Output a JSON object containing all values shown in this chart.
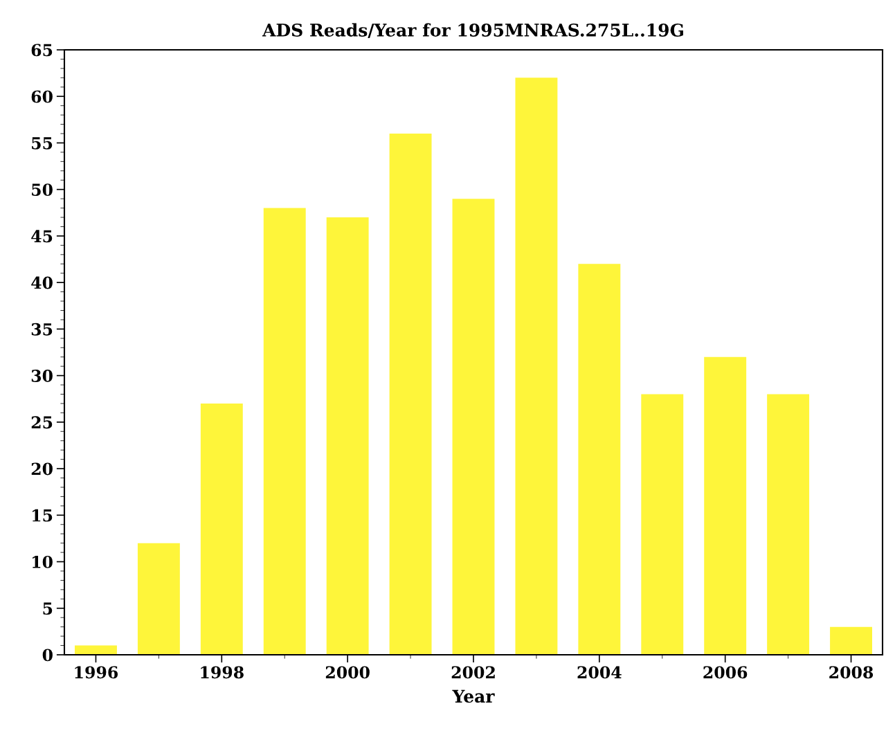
{
  "chart_data": {
    "type": "bar",
    "title": "ADS Reads/Year for 1995MNRAS.275L..19G",
    "xlabel": "Year",
    "x": [
      1996,
      1997,
      1998,
      1999,
      2000,
      2001,
      2002,
      2003,
      2004,
      2005,
      2006,
      2007,
      2008
    ],
    "values": [
      1,
      12,
      27,
      48,
      47,
      56,
      49,
      62,
      42,
      28,
      32,
      28,
      3
    ],
    "color": "#fef53a",
    "xlim": [
      1995.5,
      2008.5
    ],
    "xticks": [
      1996,
      1998,
      2000,
      2002,
      2004,
      2006,
      2008
    ],
    "ylim": [
      0,
      65
    ],
    "yticks": [
      0,
      5,
      10,
      15,
      20,
      25,
      30,
      35,
      40,
      45,
      50,
      55,
      60,
      65
    ],
    "grid": false,
    "legend": false
  }
}
